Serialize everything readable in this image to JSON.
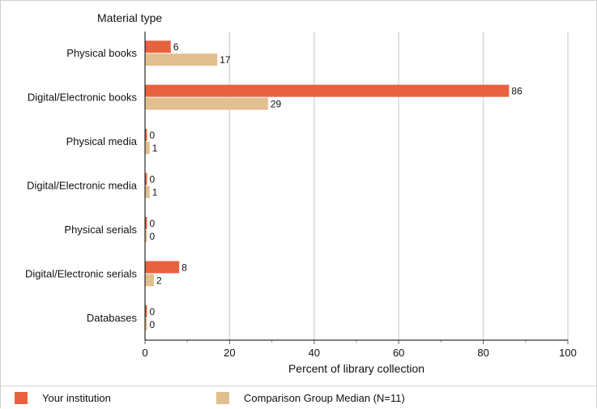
{
  "colors": {
    "your_institution": "#E8623F",
    "comparison_median": "#E2BF8E",
    "grid": "#d8d8d8",
    "axis": "#000000",
    "text": "#111111"
  },
  "chart_data": {
    "type": "bar",
    "orientation": "horizontal",
    "title": "Material type",
    "xlabel": "Percent of library collection",
    "ylabel": "",
    "xlim": [
      0,
      100
    ],
    "x_ticks": [
      "0",
      "20",
      "40",
      "60",
      "80",
      "100"
    ],
    "grid": true,
    "legend_position": "bottom",
    "categories": [
      "Physical books",
      "Digital/Electronic books",
      "Physical media",
      "Digital/Electronic media",
      "Physical serials",
      "Digital/Electronic serials",
      "Databases"
    ],
    "series": [
      {
        "name": "Your institution",
        "values": [
          6,
          86,
          0,
          0,
          0,
          8,
          0
        ],
        "labels": [
          "6",
          "86",
          "0",
          "0",
          "0",
          "8",
          "0"
        ]
      },
      {
        "name": "Comparison Group Median (N=11)",
        "values": [
          17,
          29,
          1,
          1,
          0,
          2,
          0
        ],
        "labels": [
          "17",
          "29",
          "1",
          "1",
          "0",
          "2",
          "0"
        ]
      }
    ]
  }
}
